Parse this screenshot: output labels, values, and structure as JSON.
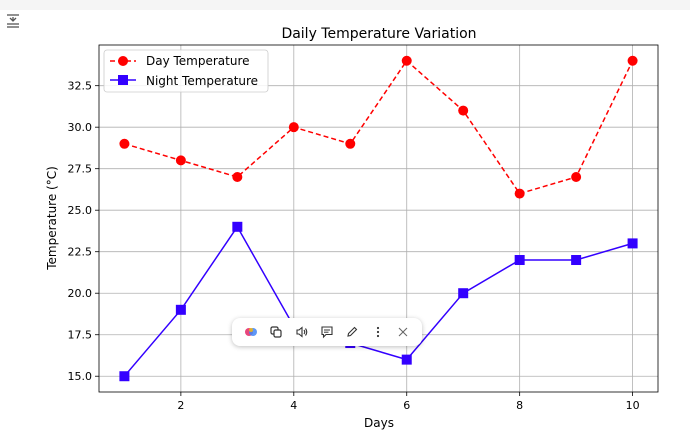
{
  "chart_data": {
    "type": "line",
    "title": "Daily Temperature Variation",
    "xlabel": "Days",
    "ylabel": "Temperature (°C)",
    "x": [
      1,
      2,
      3,
      4,
      5,
      6,
      7,
      8,
      9,
      10
    ],
    "xlim": [
      0.55,
      10.45
    ],
    "ylim": [
      14.05,
      34.95
    ],
    "xticks": [
      2,
      4,
      6,
      8,
      10
    ],
    "xtick_labels": [
      "2",
      "4",
      "6",
      "8",
      "10"
    ],
    "yticks": [
      15.0,
      17.5,
      20.0,
      22.5,
      25.0,
      27.5,
      30.0,
      32.5
    ],
    "ytick_labels": [
      "15.0",
      "17.5",
      "20.0",
      "22.5",
      "25.0",
      "27.5",
      "30.0",
      "32.5"
    ],
    "grid": true,
    "legend_position": "upper-left",
    "series": [
      {
        "name": "Day Temperature",
        "values": [
          29,
          28,
          27,
          30,
          29,
          34,
          31,
          26,
          27,
          34
        ],
        "color": "#ff0000",
        "linestyle": "dashed",
        "marker": "circle"
      },
      {
        "name": "Night Temperature",
        "values": [
          15,
          19,
          24,
          18,
          17,
          16,
          20,
          22,
          22,
          23
        ],
        "color": "#3300ff",
        "linestyle": "solid",
        "marker": "square"
      }
    ]
  },
  "toolbar": {
    "icons": [
      "gemini-icon",
      "copy-icon",
      "speaker-icon",
      "comment-icon",
      "pencil-icon",
      "more-vertical-icon",
      "close-icon"
    ]
  }
}
